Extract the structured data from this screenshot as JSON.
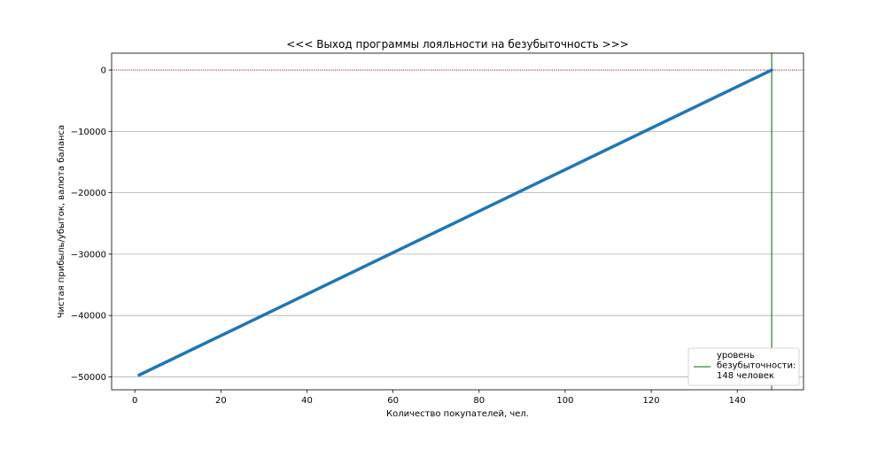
{
  "chart_data": {
    "type": "line",
    "title": "<<< Выход программы лояльности на безубыточность >>>",
    "xlabel": "Количество покупателей, чел.",
    "ylabel": "Чистая прибыль/убыток, валюта баланса",
    "xlim": [
      -5.4,
      155.4
    ],
    "ylim": [
      -52100,
      2750
    ],
    "x_ticks": [
      0,
      20,
      40,
      60,
      80,
      100,
      120,
      140
    ],
    "y_ticks": [
      0,
      -10000,
      -20000,
      -30000,
      -40000,
      -50000
    ],
    "x_tick_labels": [
      "0",
      "20",
      "40",
      "60",
      "80",
      "100",
      "120",
      "140"
    ],
    "y_tick_labels": [
      "0",
      "−10000",
      "−20000",
      "−30000",
      "−40000",
      "−50000"
    ],
    "grid": "horizontal",
    "series": [
      {
        "x": [
          1,
          148
        ],
        "values": [
          -49700,
          0
        ],
        "color": "#1f77b4"
      }
    ],
    "reference_lines": {
      "zero_line": {
        "y": 0,
        "color": "#8b0000",
        "style": "dotted"
      },
      "breakeven_line": {
        "x": 148,
        "color": "#006400"
      }
    },
    "legend": {
      "placement": "lower-right",
      "lines": [
        "уровень",
        "безубыточности:",
        "148 человек"
      ],
      "color": "#006400"
    }
  }
}
